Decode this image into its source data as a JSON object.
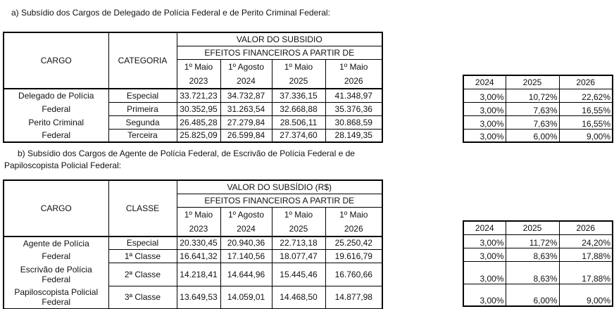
{
  "section_a": {
    "caption": "a) Subsídio dos Cargos de Delegado de Polícia Federal e de Perito Criminal Federal:",
    "headers": {
      "cargo": "CARGO",
      "categoria": "CATEGORIA",
      "valor": "VALOR DO SUBSIDIO",
      "efeitos": "EFEITOS FINANCEIROS A PARTIR DE",
      "dates": [
        [
          "1º Maio",
          "2023"
        ],
        [
          "1º Agosto",
          "2024"
        ],
        [
          "1º Maio",
          "2025"
        ],
        [
          "1º Maio",
          "2026"
        ]
      ]
    },
    "cargo_lines": [
      "Delegado de Polícia",
      "Federal",
      "Perito Criminal",
      "Federal"
    ],
    "rows": [
      {
        "categoria": "Especial",
        "values": [
          "33.721,23",
          "34.732,87",
          "37.336,15",
          "41.348,97"
        ]
      },
      {
        "categoria": "Primeira",
        "values": [
          "30.352,95",
          "31.263,54",
          "32.668,88",
          "35.376,36"
        ]
      },
      {
        "categoria": "Segunda",
        "values": [
          "26.485,28",
          "27.279,84",
          "28.506,11",
          "30.868,59"
        ]
      },
      {
        "categoria": "Terceira",
        "values": [
          "25.825,09",
          "26.599,84",
          "27.374,60",
          "28.149,35"
        ]
      }
    ],
    "pct_headers": [
      "2024",
      "2025",
      "2026"
    ],
    "pct_rows": [
      [
        "3,00%",
        "10,72%",
        "22,62%"
      ],
      [
        "3,00%",
        "7,63%",
        "16,55%"
      ],
      [
        "3,00%",
        "7,63%",
        "16,55%"
      ],
      [
        "3,00%",
        "6,00%",
        "9,00%"
      ]
    ]
  },
  "section_b": {
    "caption_line1": "b) Subsídio dos Cargos de Agente de Polícia Federal, de Escrivão de Polícia Federal e de",
    "caption_line2": "Papiloscopista Policial Federal:",
    "headers": {
      "cargo": "CARGO",
      "classe": "CLASSE",
      "valor": "VALOR DO SUBSÍDIO (R$)",
      "efeitos": "EFEITOS FINANCEIROS A PARTIR DE",
      "dates": [
        [
          "1º Maio",
          "2023"
        ],
        [
          "1º Agosto",
          "2024"
        ],
        [
          "1º Maio",
          "2025"
        ],
        [
          "1º Maio",
          "2026"
        ]
      ]
    },
    "rows": [
      {
        "cargo": "Agente de Polícia",
        "classe": "Especial",
        "values": [
          "20.330,45",
          "20.940,36",
          "22.713,18",
          "25.250,42"
        ]
      },
      {
        "cargo": "Federal",
        "classe": "1ª Classe",
        "values": [
          "16.641,32",
          "17.140,56",
          "18.077,47",
          "19.616,79"
        ]
      },
      {
        "cargo": "Escrivão de Polícia Federal",
        "classe": "2ª Classe",
        "values": [
          "14.218,41",
          "14.644,96",
          "15.445,46",
          "16.760,66"
        ]
      },
      {
        "cargo": "Papiloscopista Policial Federal",
        "classe": "3ª Classe",
        "values": [
          "13.649,53",
          "14.059,01",
          "14.468,50",
          "14.877,98"
        ]
      }
    ],
    "pct_headers": [
      "2024",
      "2025",
      "2026"
    ],
    "pct_rows": [
      [
        "3,00%",
        "11,72%",
        "24,20%"
      ],
      [
        "3,00%",
        "8,63%",
        "17,88%"
      ],
      [
        "3,00%",
        "8,63%",
        "17,88%"
      ],
      [
        "3,00%",
        "6,00%",
        "9,00%"
      ]
    ]
  }
}
